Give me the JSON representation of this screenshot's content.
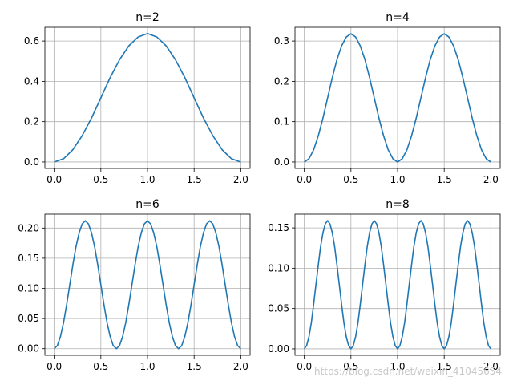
{
  "figure": {
    "watermark": "https://blog.csdn.net/weixin_41045654"
  },
  "chart_data": [
    {
      "type": "line",
      "title": "n=2",
      "xlabel": "",
      "ylabel": "",
      "xlim": [
        -0.1,
        2.1
      ],
      "ylim": [
        -0.032,
        0.668
      ],
      "xticks": [
        0.0,
        0.5,
        1.0,
        1.5,
        2.0
      ],
      "xtick_labels": [
        "0.0",
        "0.5",
        "1.0",
        "1.5",
        "2.0"
      ],
      "yticks": [
        0.0,
        0.2,
        0.4,
        0.6
      ],
      "ytick_labels": [
        "0.0",
        "0.2",
        "0.4",
        "0.6"
      ],
      "grid": true,
      "color": "#1f77b4",
      "series": [
        {
          "x": [
            0.0,
            0.1,
            0.2,
            0.3,
            0.4,
            0.5,
            0.6,
            0.7,
            0.8,
            0.9,
            1.0,
            1.1,
            1.2,
            1.3,
            1.4,
            1.5,
            1.6,
            1.7,
            1.8,
            1.9,
            2.0
          ],
          "y": [
            0.0,
            0.016,
            0.061,
            0.131,
            0.218,
            0.318,
            0.419,
            0.507,
            0.576,
            0.62,
            0.637,
            0.62,
            0.576,
            0.507,
            0.419,
            0.318,
            0.218,
            0.131,
            0.061,
            0.016,
            0.0
          ]
        }
      ]
    },
    {
      "type": "line",
      "title": "n=4",
      "xlabel": "",
      "ylabel": "",
      "xlim": [
        -0.1,
        2.1
      ],
      "ylim": [
        -0.016,
        0.334
      ],
      "xticks": [
        0.0,
        0.5,
        1.0,
        1.5,
        2.0
      ],
      "xtick_labels": [
        "0.0",
        "0.5",
        "1.0",
        "1.5",
        "2.0"
      ],
      "yticks": [
        0.0,
        0.1,
        0.2,
        0.3
      ],
      "ytick_labels": [
        "0.0",
        "0.1",
        "0.2",
        "0.3"
      ],
      "grid": true,
      "color": "#1f77b4",
      "series": [
        {
          "x": [
            0.0,
            0.05,
            0.1,
            0.15,
            0.2,
            0.25,
            0.3,
            0.35,
            0.4,
            0.45,
            0.5,
            0.55,
            0.6,
            0.65,
            0.7,
            0.75,
            0.8,
            0.85,
            0.9,
            0.95,
            1.0,
            1.05,
            1.1,
            1.15,
            1.2,
            1.25,
            1.3,
            1.35,
            1.4,
            1.45,
            1.5,
            1.55,
            1.6,
            1.65,
            1.7,
            1.75,
            1.8,
            1.85,
            1.9,
            1.95,
            2.0
          ],
          "y": [
            0.0,
            0.008,
            0.03,
            0.065,
            0.109,
            0.159,
            0.209,
            0.254,
            0.288,
            0.31,
            0.318,
            0.31,
            0.288,
            0.254,
            0.209,
            0.159,
            0.109,
            0.065,
            0.03,
            0.008,
            0.0,
            0.008,
            0.03,
            0.065,
            0.109,
            0.159,
            0.209,
            0.254,
            0.288,
            0.31,
            0.318,
            0.31,
            0.288,
            0.254,
            0.209,
            0.159,
            0.109,
            0.065,
            0.03,
            0.008,
            0.0
          ]
        }
      ]
    },
    {
      "type": "line",
      "title": "n=6",
      "xlabel": "",
      "ylabel": "",
      "xlim": [
        -0.1,
        2.1
      ],
      "ylim": [
        -0.011,
        0.223
      ],
      "xticks": [
        0.0,
        0.5,
        1.0,
        1.5,
        2.0
      ],
      "xtick_labels": [
        "0.0",
        "0.5",
        "1.0",
        "1.5",
        "2.0"
      ],
      "yticks": [
        0.0,
        0.05,
        0.1,
        0.15,
        0.2
      ],
      "ytick_labels": [
        "0.00",
        "0.05",
        "0.10",
        "0.15",
        "0.20"
      ],
      "grid": true,
      "color": "#1f77b4",
      "series": [
        {
          "x": [
            0.0,
            0.0333,
            0.0667,
            0.1,
            0.1333,
            0.1667,
            0.2,
            0.2333,
            0.2667,
            0.3,
            0.3333,
            0.3667,
            0.4,
            0.4333,
            0.4667,
            0.5,
            0.5333,
            0.5667,
            0.6,
            0.6333,
            0.6667,
            0.7,
            0.7333,
            0.7667,
            0.8,
            0.8333,
            0.8667,
            0.9,
            0.9333,
            0.9667,
            1.0,
            1.0333,
            1.0667,
            1.1,
            1.1333,
            1.1667,
            1.2,
            1.2333,
            1.2667,
            1.3,
            1.3333,
            1.3667,
            1.4,
            1.4333,
            1.4667,
            1.5,
            1.5333,
            1.5667,
            1.6,
            1.6333,
            1.6667,
            1.7,
            1.7333,
            1.7667,
            1.8,
            1.8333,
            1.8667,
            1.9,
            1.9333,
            1.9667,
            2.0
          ],
          "y": [
            0.0,
            0.005,
            0.02,
            0.043,
            0.073,
            0.106,
            0.139,
            0.169,
            0.192,
            0.207,
            0.212,
            0.207,
            0.192,
            0.169,
            0.139,
            0.106,
            0.073,
            0.043,
            0.02,
            0.005,
            0.0,
            0.005,
            0.02,
            0.043,
            0.073,
            0.106,
            0.139,
            0.169,
            0.192,
            0.207,
            0.212,
            0.207,
            0.192,
            0.169,
            0.139,
            0.106,
            0.073,
            0.043,
            0.02,
            0.005,
            0.0,
            0.005,
            0.02,
            0.043,
            0.073,
            0.106,
            0.139,
            0.169,
            0.192,
            0.207,
            0.212,
            0.207,
            0.192,
            0.169,
            0.139,
            0.106,
            0.073,
            0.043,
            0.02,
            0.005,
            0.0
          ]
        }
      ]
    },
    {
      "type": "line",
      "title": "n=8",
      "xlabel": "",
      "ylabel": "",
      "xlim": [
        -0.1,
        2.1
      ],
      "ylim": [
        -0.008,
        0.167
      ],
      "xticks": [
        0.0,
        0.5,
        1.0,
        1.5,
        2.0
      ],
      "xtick_labels": [
        "0.0",
        "0.5",
        "1.0",
        "1.5",
        "2.0"
      ],
      "yticks": [
        0.0,
        0.05,
        0.1,
        0.15
      ],
      "ytick_labels": [
        "0.00",
        "0.05",
        "0.10",
        "0.15"
      ],
      "grid": true,
      "color": "#1f77b4",
      "series": [
        {
          "x": [
            0.0,
            0.025,
            0.05,
            0.075,
            0.1,
            0.125,
            0.15,
            0.175,
            0.2,
            0.225,
            0.25,
            0.275,
            0.3,
            0.325,
            0.35,
            0.375,
            0.4,
            0.425,
            0.45,
            0.475,
            0.5,
            0.525,
            0.55,
            0.575,
            0.6,
            0.625,
            0.65,
            0.675,
            0.7,
            0.725,
            0.75,
            0.775,
            0.8,
            0.825,
            0.85,
            0.875,
            0.9,
            0.925,
            0.95,
            0.975,
            1.0,
            1.025,
            1.05,
            1.075,
            1.1,
            1.125,
            1.15,
            1.175,
            1.2,
            1.225,
            1.25,
            1.275,
            1.3,
            1.325,
            1.35,
            1.375,
            1.4,
            1.425,
            1.45,
            1.475,
            1.5,
            1.525,
            1.55,
            1.575,
            1.6,
            1.625,
            1.65,
            1.675,
            1.7,
            1.725,
            1.75,
            1.775,
            1.8,
            1.825,
            1.85,
            1.875,
            1.9,
            1.925,
            1.95,
            1.975,
            2.0
          ],
          "y": [
            0.0,
            0.004,
            0.015,
            0.032,
            0.055,
            0.08,
            0.104,
            0.127,
            0.144,
            0.155,
            0.159,
            0.155,
            0.144,
            0.127,
            0.104,
            0.08,
            0.055,
            0.032,
            0.015,
            0.004,
            0.0,
            0.004,
            0.015,
            0.032,
            0.055,
            0.08,
            0.104,
            0.127,
            0.144,
            0.155,
            0.159,
            0.155,
            0.144,
            0.127,
            0.104,
            0.08,
            0.055,
            0.032,
            0.015,
            0.004,
            0.0,
            0.004,
            0.015,
            0.032,
            0.055,
            0.08,
            0.104,
            0.127,
            0.144,
            0.155,
            0.159,
            0.155,
            0.144,
            0.127,
            0.104,
            0.08,
            0.055,
            0.032,
            0.015,
            0.004,
            0.0,
            0.004,
            0.015,
            0.032,
            0.055,
            0.08,
            0.104,
            0.127,
            0.144,
            0.155,
            0.159,
            0.155,
            0.144,
            0.127,
            0.104,
            0.08,
            0.055,
            0.032,
            0.015,
            0.004,
            0.0
          ]
        }
      ]
    }
  ]
}
